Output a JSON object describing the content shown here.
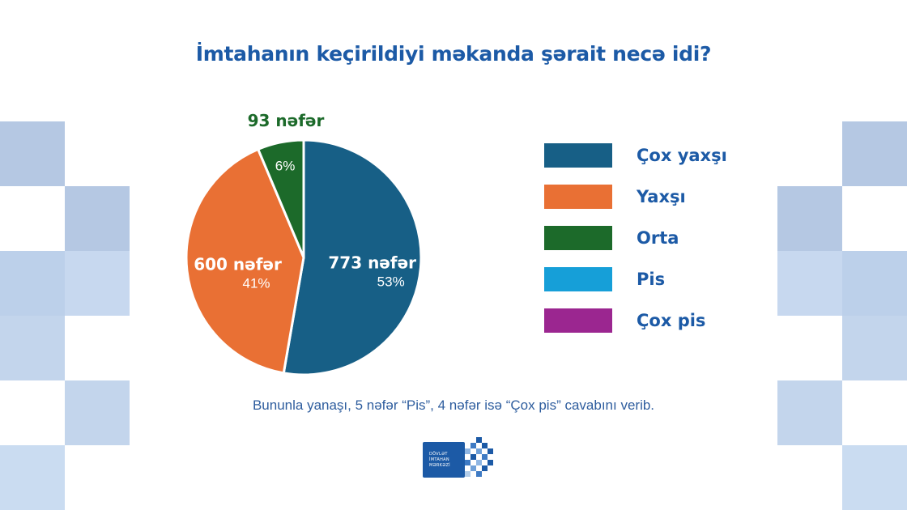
{
  "title": "İmtahanın keçirildiyi məkanda şərait necə idi?",
  "chart_data": {
    "type": "pie",
    "slices": [
      {
        "category": "Çox yaxşı",
        "value": 773,
        "count_label": "773 nəfər",
        "percent_label": "53%",
        "color": "#175f86"
      },
      {
        "category": "Yaxşı",
        "value": 600,
        "count_label": "600 nəfər",
        "percent_label": "41%",
        "color": "#e97034"
      },
      {
        "category": "Orta",
        "value": 93,
        "count_label": "93 nəfər",
        "percent_label": "6%",
        "color": "#1c6a2a"
      }
    ],
    "legend": {
      "position": "right",
      "items": [
        {
          "label": "Çox yaxşı",
          "color": "#175f86"
        },
        {
          "label": "Yaxşı",
          "color": "#e97034"
        },
        {
          "label": "Orta",
          "color": "#1c6a2a"
        },
        {
          "label": "Pis",
          "color": "#169fd8"
        },
        {
          "label": "Çox pis",
          "color": "#9b2690"
        }
      ]
    }
  },
  "footnote": "Bununla yanaşı, 5 nəfər “Pis”, 4 nəfər isə “Çox pis” cavabını verib.",
  "logo": {
    "lines": [
      "DÖVLƏT",
      "İMTAHAN",
      "MƏRKƏZİ"
    ],
    "color": "#1c5aa6"
  }
}
